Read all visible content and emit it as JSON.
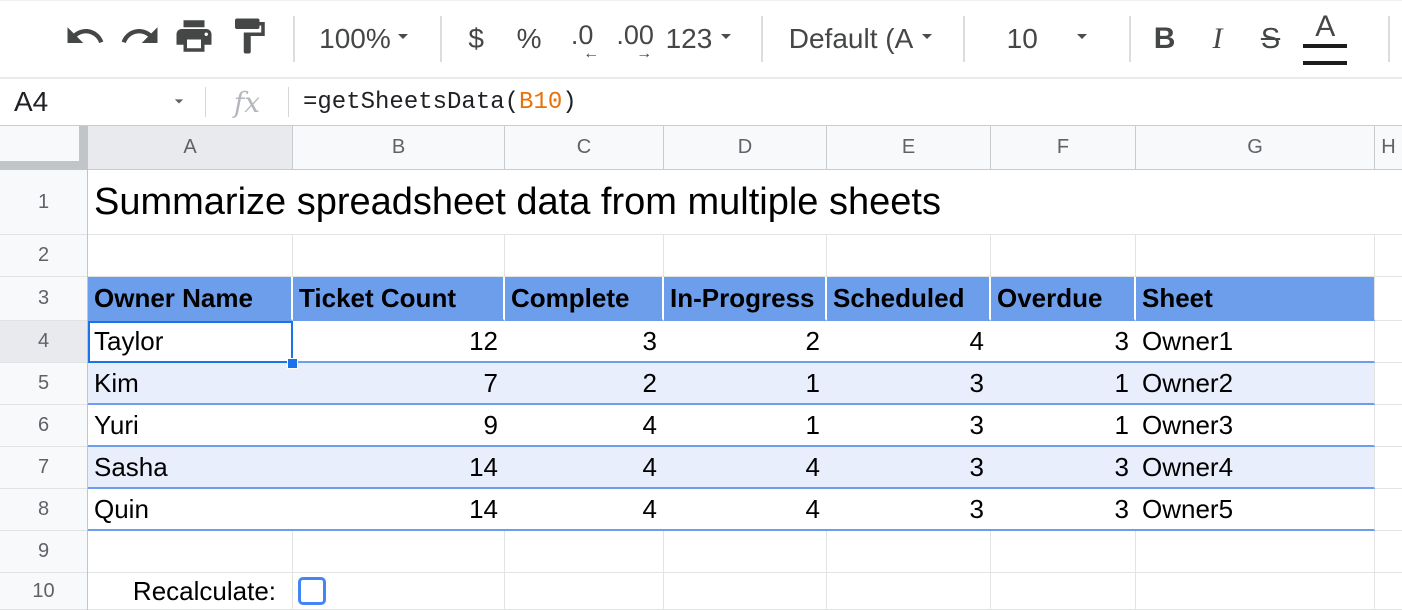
{
  "toolbar": {
    "zoom_value": "100%",
    "currency_label": "$",
    "percent_label": "%",
    "decrease_decimal_label": ".0",
    "decrease_decimal_arrow": "←",
    "increase_decimal_label": ".00",
    "increase_decimal_arrow": "→",
    "more_formats_label": "123",
    "font_value": "Default (Ari…",
    "font_size_value": "10",
    "bold_label": "B",
    "italic_label": "I",
    "strikethrough_label": "S",
    "text_color_label": "A"
  },
  "formula_bar": {
    "cell_reference": "A4",
    "fx_label": "fx",
    "formula_prefix": "=getSheetsData(",
    "formula_ref": "B10",
    "formula_suffix": ")"
  },
  "grid": {
    "column_letters": [
      "A",
      "B",
      "C",
      "D",
      "E",
      "F",
      "G",
      "H"
    ],
    "row_numbers": [
      "1",
      "2",
      "3",
      "4",
      "5",
      "6",
      "7",
      "8",
      "9",
      "10"
    ],
    "title": "Summarize spreadsheet data from multiple sheets",
    "selected_cell": "A4",
    "table": {
      "header_row": 3,
      "headers": [
        "Owner Name",
        "Ticket Count",
        "Complete",
        "In-Progress",
        "Scheduled",
        "Overdue",
        "Sheet"
      ],
      "rows": [
        [
          "Taylor",
          12,
          3,
          2,
          4,
          3,
          "Owner1"
        ],
        [
          "Kim",
          7,
          2,
          1,
          3,
          1,
          "Owner2"
        ],
        [
          "Yuri",
          9,
          4,
          1,
          3,
          1,
          "Owner3"
        ],
        [
          "Sasha",
          14,
          4,
          4,
          3,
          3,
          "Owner4"
        ],
        [
          "Quin",
          14,
          4,
          4,
          3,
          3,
          "Owner5"
        ]
      ]
    },
    "recalculate_label": "Recalculate:",
    "checkbox_checked": false
  },
  "colors": {
    "table_header_blue": "#6d9eeb",
    "banding_blue": "#e8eefb",
    "selection_blue": "#1a73e8",
    "checkbox_blue": "#4285f4",
    "formula_ref_orange": "#e8710a"
  }
}
